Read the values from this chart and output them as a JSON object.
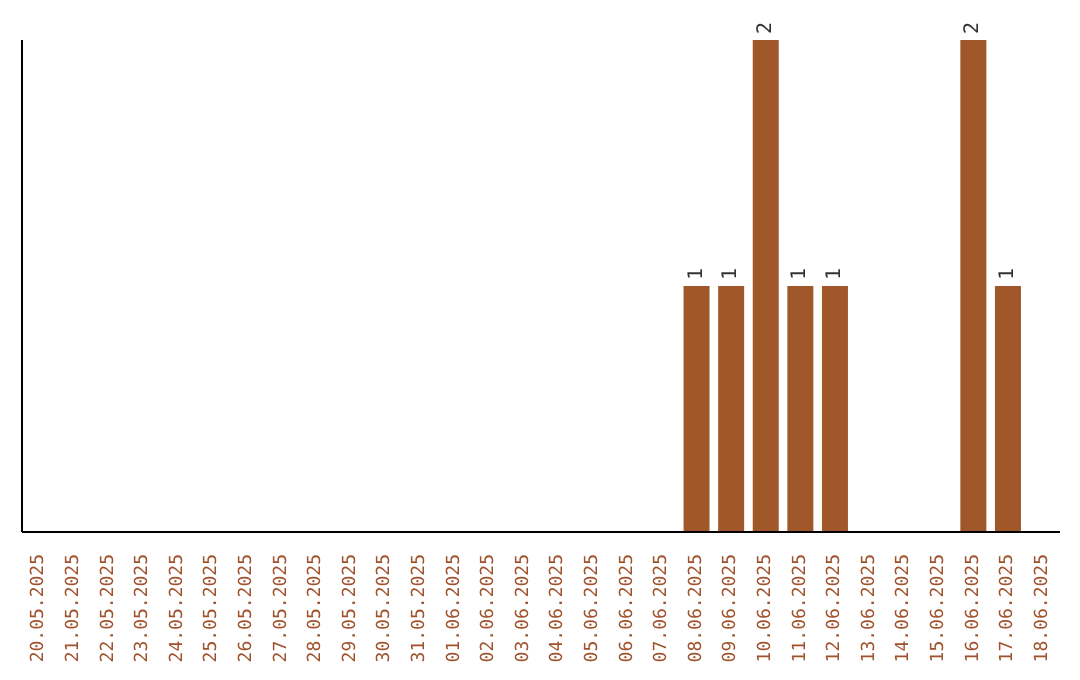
{
  "chart_data": {
    "type": "bar",
    "categories": [
      "20.05.2025",
      "21.05.2025",
      "22.05.2025",
      "23.05.2025",
      "24.05.2025",
      "25.05.2025",
      "26.05.2025",
      "27.05.2025",
      "28.05.2025",
      "29.05.2025",
      "30.05.2025",
      "31.05.2025",
      "01.06.2025",
      "02.06.2025",
      "03.06.2025",
      "04.06.2025",
      "05.06.2025",
      "06.06.2025",
      "07.06.2025",
      "08.06.2025",
      "09.06.2025",
      "10.06.2025",
      "11.06.2025",
      "12.06.2025",
      "13.06.2025",
      "14.06.2025",
      "15.06.2025",
      "16.06.2025",
      "17.06.2025",
      "18.06.2025"
    ],
    "values": [
      null,
      null,
      null,
      null,
      null,
      null,
      null,
      null,
      null,
      null,
      null,
      null,
      null,
      null,
      null,
      null,
      null,
      null,
      null,
      1,
      1,
      2,
      1,
      1,
      null,
      null,
      null,
      2,
      1,
      null
    ],
    "data_labels": true,
    "color": "#a0582a",
    "grid": false,
    "legend": false
  }
}
